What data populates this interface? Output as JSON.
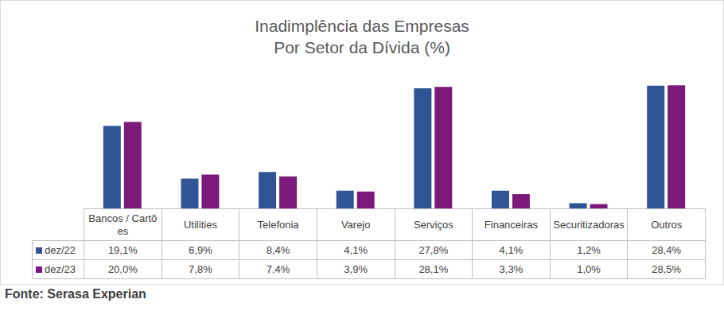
{
  "chart_data": {
    "type": "bar",
    "title": "Inadimplência das Empresas\nPor Setor da Dívida (%)",
    "source": "Fonte: Serasa Experian",
    "categories": [
      "Bancos / Cartões",
      "Utilities",
      "Telefonia",
      "Varejo",
      "Serviços",
      "Financeiras",
      "Securitizadoras",
      "Outros"
    ],
    "series": [
      {
        "name": "dez/22",
        "color": "#2f5597",
        "values": [
          19.1,
          6.9,
          8.4,
          4.1,
          27.8,
          4.1,
          1.2,
          28.4
        ],
        "value_labels": [
          "19,1%",
          "6,9%",
          "8,4%",
          "4,1%",
          "27,8%",
          "4,1%",
          "1,2%",
          "28,4%"
        ]
      },
      {
        "name": "dez/23",
        "color": "#7b1a7b",
        "values": [
          20.0,
          7.8,
          7.4,
          3.9,
          28.1,
          3.3,
          1.0,
          28.5
        ],
        "value_labels": [
          "20,0%",
          "7,8%",
          "7,4%",
          "3,9%",
          "28,1%",
          "3,3%",
          "1,0%",
          "28,5%"
        ]
      }
    ],
    "ylim": [
      0,
      30
    ],
    "tick_labels": false,
    "grid": false,
    "data_labels": false
  }
}
